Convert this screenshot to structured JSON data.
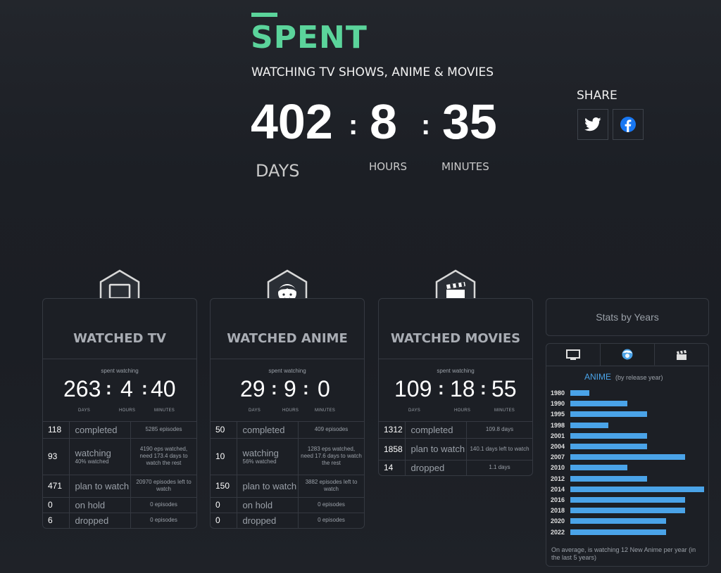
{
  "hero": {
    "title": "SPENT",
    "subtitle": "WATCHING TV SHOWS, ANIME & MOVIES",
    "days": "402",
    "hours": "8",
    "minutes": "35",
    "days_label": "DAYS",
    "hours_label": "HOURS",
    "minutes_label": "MINUTES",
    "colon": ":"
  },
  "share": {
    "label": "SHARE",
    "twitter_icon": "twitter-icon",
    "facebook_icon": "facebook-icon"
  },
  "units": {
    "days": "DAYS",
    "hours": "HOURS",
    "minutes": "MINUTES",
    "spent": "spent watching"
  },
  "cards": {
    "tv": {
      "title": "WATCHED TV",
      "icon": "tv-icon",
      "days": "263",
      "hours": "4",
      "minutes": "40",
      "rows": [
        {
          "count": "118",
          "label": "completed",
          "note": "",
          "detail": "5285 episodes"
        },
        {
          "count": "93",
          "label": "watching",
          "note": "40% watched",
          "detail": "4190 eps watched, need 173.4 days to watch the rest"
        },
        {
          "count": "471",
          "label": "plan to watch",
          "note": "",
          "detail": "20970 episodes left to watch"
        },
        {
          "count": "0",
          "label": "on hold",
          "note": "",
          "detail": "0 episodes"
        },
        {
          "count": "6",
          "label": "dropped",
          "note": "",
          "detail": "0 episodes"
        }
      ]
    },
    "anime": {
      "title": "WATCHED ANIME",
      "icon": "anime-face-icon",
      "days": "29",
      "hours": "9",
      "minutes": "0",
      "rows": [
        {
          "count": "50",
          "label": "completed",
          "note": "",
          "detail": "409 episodes"
        },
        {
          "count": "10",
          "label": "watching",
          "note": "56% watched",
          "detail": "1283 eps watched, need 17.6 days to watch the rest"
        },
        {
          "count": "150",
          "label": "plan to watch",
          "note": "",
          "detail": "3882 episodes left to watch"
        },
        {
          "count": "0",
          "label": "on hold",
          "note": "",
          "detail": "0 episodes"
        },
        {
          "count": "0",
          "label": "dropped",
          "note": "",
          "detail": "0 episodes"
        }
      ]
    },
    "movies": {
      "title": "WATCHED MOVIES",
      "icon": "clapperboard-icon",
      "days": "109",
      "hours": "18",
      "minutes": "55",
      "rows": [
        {
          "count": "1312",
          "label": "completed",
          "note": "",
          "detail": "109.8 days"
        },
        {
          "count": "1858",
          "label": "plan to watch",
          "note": "",
          "detail": "140.1 days left to watch"
        },
        {
          "count": "14",
          "label": "dropped",
          "note": "",
          "detail": "1.1 days"
        }
      ]
    }
  },
  "stats_by_years": {
    "button_label": "Stats by Years",
    "tabs": [
      "tv-icon",
      "anime-icon",
      "clapperboard-icon"
    ],
    "active_tab": 1,
    "chart_title": "ANIME",
    "chart_subtitle": "(by release year)",
    "footnote": "On average, is watching 12 New Anime per year (in the last 5 years)"
  },
  "chart_data": {
    "type": "bar",
    "orientation": "horizontal",
    "title": "ANIME",
    "subtitle": "(by release year)",
    "categories": [
      "1980",
      "1990",
      "1995",
      "1998",
      "2001",
      "2004",
      "2007",
      "2010",
      "2012",
      "2014",
      "2016",
      "2018",
      "2020",
      "2022"
    ],
    "values": [
      1,
      3,
      4,
      2,
      4,
      4,
      6,
      3,
      4,
      7,
      6,
      6,
      5,
      5
    ],
    "color": "#4aa3e8",
    "grid": false
  }
}
